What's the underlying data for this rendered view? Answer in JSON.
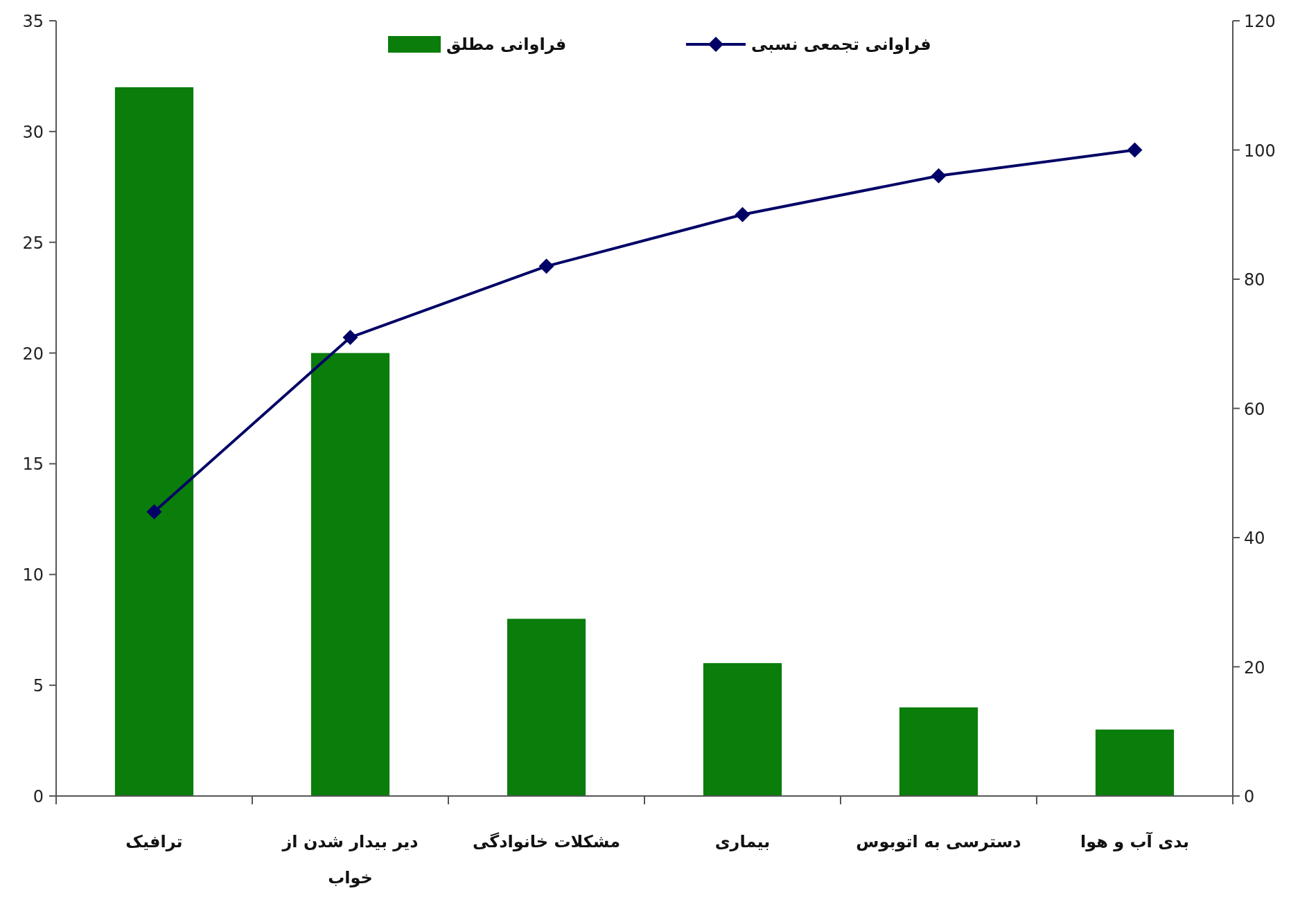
{
  "chart_data": {
    "type": "bar",
    "categories": [
      "ترافیک",
      "دیر بیدار شدن از خواب",
      "مشکلات خانوادگی",
      "بیماری",
      "دسترسی به اتوبوس",
      "بدی آب و هوا"
    ],
    "series": [
      {
        "name": "فراوانی مطلق",
        "color": "#0a7d0a",
        "values": [
          32,
          20,
          8,
          6,
          4,
          3
        ]
      },
      {
        "name": "فراوانی تجمعی نسبی",
        "type": "line",
        "axis": "y2",
        "color": "#000066",
        "marker": "diamond",
        "values": [
          44,
          71,
          82,
          90,
          96,
          100
        ]
      }
    ],
    "ylim": [
      0,
      35
    ],
    "yticks": [
      0,
      5,
      10,
      15,
      20,
      25,
      30,
      35
    ],
    "y2lim": [
      0,
      120
    ],
    "y2ticks": [
      0,
      20,
      40,
      60,
      80,
      100,
      120
    ],
    "grid": false,
    "legend": "top"
  }
}
